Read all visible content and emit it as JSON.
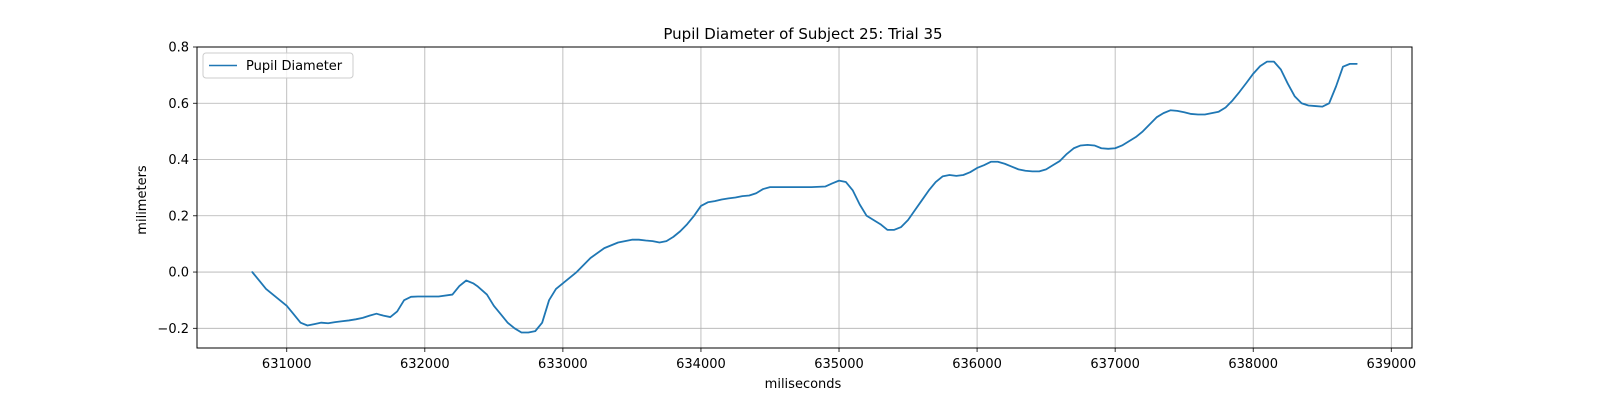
{
  "chart_data": {
    "type": "line",
    "title": "Pupil Diameter of Subject 25: Trial 35",
    "xlabel": "miliseconds",
    "ylabel": "milimeters",
    "xlim": [
      630350,
      639150
    ],
    "ylim": [
      -0.27,
      0.8
    ],
    "xticks": [
      631000,
      632000,
      633000,
      634000,
      635000,
      636000,
      637000,
      638000,
      639000
    ],
    "xtick_labels": [
      "631000",
      "632000",
      "633000",
      "634000",
      "635000",
      "636000",
      "637000",
      "638000",
      "639000"
    ],
    "yticks": [
      -0.2,
      0.0,
      0.2,
      0.4,
      0.6,
      0.8
    ],
    "ytick_labels": [
      "−0.2",
      "0.0",
      "0.2",
      "0.4",
      "0.6",
      "0.8"
    ],
    "grid": true,
    "legend_position": "upper-left",
    "series": [
      {
        "name": "Pupil Diameter",
        "color": "#1f77b4",
        "x": [
          630750,
          630800,
          630850,
          630900,
          630950,
          631000,
          631050,
          631100,
          631150,
          631200,
          631250,
          631300,
          631350,
          631400,
          631450,
          631500,
          631550,
          631600,
          631650,
          631700,
          631750,
          631800,
          631850,
          631900,
          631950,
          632000,
          632100,
          632200,
          632250,
          632300,
          632350,
          632380,
          632450,
          632500,
          632550,
          632600,
          632650,
          632700,
          632750,
          632800,
          632850,
          632900,
          632950,
          633000,
          633100,
          633200,
          633300,
          633400,
          633500,
          633550,
          633600,
          633650,
          633700,
          633750,
          633800,
          633850,
          633900,
          633950,
          634000,
          634050,
          634100,
          634150,
          634200,
          634250,
          634300,
          634350,
          634400,
          634450,
          634500,
          634600,
          634700,
          634800,
          634900,
          634950,
          635000,
          635050,
          635100,
          635150,
          635200,
          635250,
          635300,
          635350,
          635400,
          635450,
          635500,
          635550,
          635600,
          635650,
          635700,
          635750,
          635800,
          635850,
          635900,
          635950,
          636000,
          636050,
          636100,
          636150,
          636200,
          636250,
          636300,
          636350,
          636400,
          636450,
          636500,
          636550,
          636600,
          636650,
          636700,
          636750,
          636800,
          636850,
          636900,
          636950,
          637000,
          637050,
          637100,
          637150,
          637200,
          637250,
          637300,
          637350,
          637400,
          637450,
          637500,
          637550,
          637600,
          637650,
          637700,
          637750,
          637800,
          637850,
          637900,
          637950,
          638000,
          638050,
          638100,
          638150,
          638200,
          638250,
          638300,
          638350,
          638400,
          638450,
          638500,
          638550,
          638600,
          638650,
          638700,
          638750
        ],
        "y": [
          0.0,
          -0.03,
          -0.06,
          -0.08,
          -0.1,
          -0.12,
          -0.15,
          -0.18,
          -0.19,
          -0.185,
          -0.18,
          -0.182,
          -0.178,
          -0.175,
          -0.172,
          -0.168,
          -0.163,
          -0.155,
          -0.148,
          -0.155,
          -0.16,
          -0.14,
          -0.1,
          -0.088,
          -0.087,
          -0.087,
          -0.087,
          -0.08,
          -0.05,
          -0.03,
          -0.04,
          -0.05,
          -0.08,
          -0.12,
          -0.15,
          -0.18,
          -0.2,
          -0.215,
          -0.215,
          -0.21,
          -0.18,
          -0.1,
          -0.06,
          -0.04,
          0.0,
          0.05,
          0.085,
          0.105,
          0.115,
          0.115,
          0.112,
          0.11,
          0.105,
          0.11,
          0.125,
          0.145,
          0.17,
          0.2,
          0.235,
          0.248,
          0.252,
          0.258,
          0.262,
          0.265,
          0.27,
          0.272,
          0.28,
          0.295,
          0.302,
          0.302,
          0.302,
          0.302,
          0.304,
          0.315,
          0.325,
          0.32,
          0.29,
          0.24,
          0.2,
          0.185,
          0.17,
          0.15,
          0.15,
          0.16,
          0.185,
          0.22,
          0.255,
          0.29,
          0.32,
          0.34,
          0.345,
          0.342,
          0.345,
          0.355,
          0.37,
          0.38,
          0.392,
          0.392,
          0.385,
          0.375,
          0.365,
          0.36,
          0.358,
          0.358,
          0.365,
          0.38,
          0.395,
          0.42,
          0.44,
          0.45,
          0.452,
          0.45,
          0.44,
          0.438,
          0.44,
          0.45,
          0.465,
          0.48,
          0.5,
          0.525,
          0.55,
          0.565,
          0.575,
          0.573,
          0.568,
          0.562,
          0.56,
          0.56,
          0.565,
          0.57,
          0.585,
          0.61,
          0.64,
          0.672,
          0.705,
          0.732,
          0.748,
          0.748,
          0.72,
          0.67,
          0.625,
          0.6,
          0.592,
          0.59,
          0.588,
          0.6,
          0.66,
          0.73,
          0.74,
          0.74
        ]
      }
    ]
  }
}
